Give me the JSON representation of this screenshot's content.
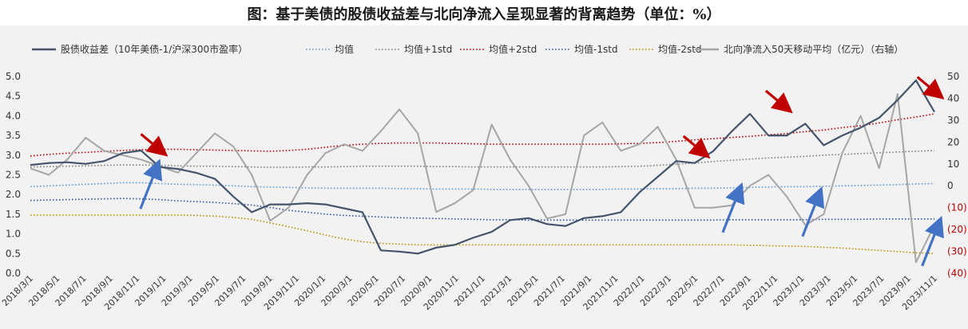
{
  "title": "图：基于美债的股债收益差与北向净流入呈现显著的背离趋势（单位：%）",
  "chart_data": {
    "type": "line",
    "title": "图：基于美债的股债收益差与北向净流入呈现显著的背离趋势（单位：%）",
    "x_labels": [
      "2018/3/1",
      "2018/5/1",
      "2018/7/1",
      "2018/9/1",
      "2018/11/1",
      "2019/1/1",
      "2019/3/1",
      "2019/5/1",
      "2019/7/1",
      "2019/9/1",
      "2019/11/1",
      "2020/1/1",
      "2020/3/1",
      "2020/5/1",
      "2020/7/1",
      "2020/9/1",
      "2020/11/1",
      "2021/1/1",
      "2021/3/1",
      "2021/5/1",
      "2021/7/1",
      "2021/9/1",
      "2021/11/1",
      "2022/1/1",
      "2022/3/1",
      "2022/5/1",
      "2022/7/1",
      "2022/9/1",
      "2022/11/1",
      "2023/1/1",
      "2023/3/1",
      "2023/5/1",
      "2023/7/1",
      "2023/9/1",
      "2023/11/1"
    ],
    "y_left": {
      "ylim": [
        0,
        5
      ],
      "ticks": [
        "0.0",
        "0.5",
        "1.0",
        "1.5",
        "2.0",
        "2.5",
        "3.0",
        "3.5",
        "4.0",
        "4.5",
        "5.0"
      ]
    },
    "y_right": {
      "ylim": [
        -40,
        50
      ],
      "ticks": [
        "(40)",
        "(30)",
        "(20)",
        "(10)",
        "0",
        "10",
        "20",
        "30",
        "40",
        "50"
      ],
      "label": "（右轴）"
    },
    "legend_position": "top",
    "grid": false,
    "series": [
      {
        "name": "股债收益差（10年美债-1/沪深300市盈率）",
        "axis": "left",
        "style": "solid",
        "color": "#44546a",
        "values": [
          2.75,
          2.8,
          2.82,
          2.78,
          2.85,
          3.05,
          3.12,
          2.7,
          2.65,
          2.55,
          2.4,
          1.95,
          1.55,
          1.75,
          1.75,
          1.78,
          1.75,
          1.65,
          1.55,
          0.58,
          0.55,
          0.5,
          0.65,
          0.72,
          0.9,
          1.05,
          1.35,
          1.4,
          1.25,
          1.2,
          1.4,
          1.45,
          1.55,
          2.05,
          2.45,
          2.85,
          2.8,
          3.1,
          3.6,
          4.05,
          3.5,
          3.5,
          3.8,
          3.25,
          3.5,
          3.7,
          3.95,
          4.4,
          4.9,
          4.1
        ]
      },
      {
        "name": "均值",
        "axis": "left",
        "style": "dotted",
        "color": "#5b9bd5",
        "values": [
          2.2,
          2.22,
          2.24,
          2.26,
          2.28,
          2.3,
          2.3,
          2.28,
          2.26,
          2.25,
          2.24,
          2.22,
          2.2,
          2.19,
          2.18,
          2.17,
          2.16,
          2.16,
          2.16,
          2.16,
          2.15,
          2.15,
          2.14,
          2.14,
          2.14,
          2.13,
          2.13,
          2.13,
          2.13,
          2.13,
          2.13,
          2.13,
          2.14,
          2.14,
          2.15,
          2.15,
          2.16,
          2.16,
          2.17,
          2.18,
          2.19,
          2.2,
          2.2,
          2.21,
          2.22,
          2.23,
          2.24,
          2.25,
          2.27,
          2.28
        ]
      },
      {
        "name": "均值+1std",
        "axis": "left",
        "style": "dotted",
        "color": "#7f7f7f",
        "values": [
          2.7,
          2.71,
          2.72,
          2.73,
          2.74,
          2.75,
          2.75,
          2.74,
          2.73,
          2.72,
          2.72,
          2.71,
          2.7,
          2.69,
          2.69,
          2.7,
          2.7,
          2.71,
          2.72,
          2.72,
          2.72,
          2.72,
          2.71,
          2.71,
          2.7,
          2.7,
          2.7,
          2.7,
          2.7,
          2.7,
          2.7,
          2.7,
          2.71,
          2.72,
          2.74,
          2.77,
          2.8,
          2.84,
          2.87,
          2.9,
          2.93,
          2.95,
          2.97,
          3.0,
          3.02,
          3.04,
          3.06,
          3.08,
          3.1,
          3.12
        ]
      },
      {
        "name": "均值+2std",
        "axis": "left",
        "style": "dotted",
        "color": "#c00000",
        "values": [
          2.98,
          3.02,
          3.05,
          3.07,
          3.1,
          3.12,
          3.14,
          3.15,
          3.15,
          3.14,
          3.13,
          3.12,
          3.11,
          3.1,
          3.12,
          3.15,
          3.2,
          3.25,
          3.28,
          3.3,
          3.31,
          3.31,
          3.31,
          3.3,
          3.29,
          3.28,
          3.28,
          3.28,
          3.28,
          3.28,
          3.28,
          3.28,
          3.29,
          3.3,
          3.32,
          3.35,
          3.39,
          3.42,
          3.45,
          3.48,
          3.52,
          3.55,
          3.6,
          3.64,
          3.7,
          3.75,
          3.82,
          3.9,
          3.97,
          4.05
        ]
      },
      {
        "name": "均值-1std",
        "axis": "left",
        "style": "dotted",
        "color": "#2f55a4",
        "values": [
          1.85,
          1.86,
          1.87,
          1.88,
          1.89,
          1.9,
          1.89,
          1.87,
          1.84,
          1.82,
          1.8,
          1.77,
          1.73,
          1.67,
          1.6,
          1.55,
          1.5,
          1.47,
          1.45,
          1.43,
          1.41,
          1.4,
          1.39,
          1.38,
          1.37,
          1.36,
          1.36,
          1.35,
          1.35,
          1.35,
          1.35,
          1.35,
          1.35,
          1.35,
          1.35,
          1.35,
          1.35,
          1.35,
          1.36,
          1.36,
          1.36,
          1.36,
          1.36,
          1.37,
          1.37,
          1.37,
          1.38,
          1.38,
          1.38,
          1.38
        ]
      },
      {
        "name": "均值-2std",
        "axis": "left",
        "style": "dotted",
        "color": "#bf9000",
        "values": [
          1.48,
          1.48,
          1.48,
          1.48,
          1.48,
          1.48,
          1.48,
          1.48,
          1.48,
          1.47,
          1.45,
          1.42,
          1.37,
          1.28,
          1.18,
          1.08,
          0.97,
          0.87,
          0.8,
          0.76,
          0.74,
          0.72,
          0.72,
          0.72,
          0.72,
          0.72,
          0.72,
          0.72,
          0.72,
          0.72,
          0.72,
          0.72,
          0.72,
          0.72,
          0.72,
          0.72,
          0.72,
          0.72,
          0.72,
          0.71,
          0.7,
          0.69,
          0.68,
          0.66,
          0.64,
          0.61,
          0.58,
          0.55,
          0.52,
          0.5
        ]
      },
      {
        "name": "北向净流入50天移动平均（亿元）",
        "axis": "right",
        "style": "solid",
        "color": "#a6a6a6",
        "values": [
          8,
          5,
          12,
          22,
          16,
          14,
          12,
          9,
          6,
          15,
          24,
          18,
          5,
          -16,
          -10,
          5,
          15,
          19,
          16,
          25,
          35,
          24,
          -12,
          -8,
          -2,
          28,
          12,
          0,
          -15,
          -13,
          23,
          29,
          16,
          19,
          27,
          12,
          -10,
          -10,
          -9,
          0,
          5,
          -5,
          -18,
          -13,
          15,
          32,
          8,
          42,
          -35,
          -18
        ]
      }
    ]
  },
  "legend": [
    {
      "label": "股债收益差（10年美债-1/沪深300市盈率）",
      "color": "#44546a",
      "style": "solid"
    },
    {
      "label": "均值",
      "color": "#5b9bd5",
      "style": "dotted"
    },
    {
      "label": "均值+1std",
      "color": "#7f7f7f",
      "style": "dotted"
    },
    {
      "label": "均值+2std",
      "color": "#c00000",
      "style": "dotted"
    },
    {
      "label": "均值-1std",
      "color": "#2f55a4",
      "style": "dotted"
    },
    {
      "label": "均值-2std",
      "color": "#bf9000",
      "style": "dotted"
    },
    {
      "label": "北向净流入50天移动平均（亿元）（右轴）",
      "color": "#a6a6a6",
      "style": "solid"
    }
  ],
  "annotations": {
    "red_arrows": [
      {
        "x": 5.0,
        "y": 3.05
      },
      {
        "x": 25.4,
        "y": 3.0
      },
      {
        "x": 28.5,
        "y": 4.15
      },
      {
        "x": 34.2,
        "y": 4.5
      }
    ],
    "blue_arrows": [
      {
        "x": 4.8,
        "y": 2.75
      },
      {
        "x": 26.7,
        "y": 2.15
      },
      {
        "x": 29.7,
        "y": 2.05
      },
      {
        "x": 34.2,
        "y": 1.3
      }
    ]
  }
}
